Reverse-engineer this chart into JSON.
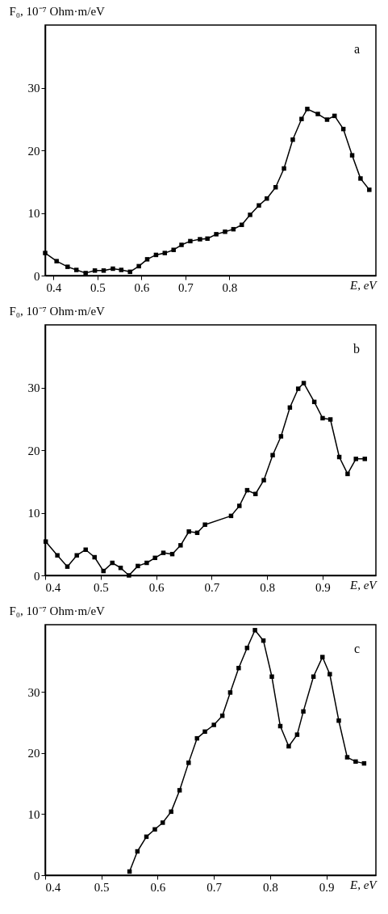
{
  "chart_data": [
    {
      "type": "line",
      "ylabel": "F₀, 10⁻⁷ Ohm·m/eV",
      "xlabel": "E, eV",
      "annotations": [
        "a"
      ],
      "marker": "square",
      "line_style": "solid",
      "grid": false,
      "xlim": [
        0.381,
        1.133
      ],
      "xticks": [
        0.4,
        0.5,
        0.6,
        0.7,
        0.8
      ],
      "ylim": [
        0,
        40
      ],
      "yticks": [
        0,
        10,
        20,
        30
      ],
      "series": [
        {
          "color": "#000000",
          "x": [
            0.381,
            0.407,
            0.432,
            0.452,
            0.473,
            0.494,
            0.514,
            0.535,
            0.554,
            0.574,
            0.594,
            0.613,
            0.633,
            0.653,
            0.673,
            0.691,
            0.711,
            0.733,
            0.75,
            0.77,
            0.79,
            0.809,
            0.828,
            0.847,
            0.867,
            0.885,
            0.905,
            0.924,
            0.944,
            0.964,
            0.977,
            1.001,
            1.022,
            1.039,
            1.059,
            1.079,
            1.098,
            1.118
          ],
          "values": [
            3.6,
            2.3,
            1.4,
            0.9,
            0.4,
            0.8,
            0.8,
            1.1,
            0.9,
            0.6,
            1.5,
            2.6,
            3.3,
            3.6,
            4.1,
            4.9,
            5.5,
            5.8,
            5.9,
            6.6,
            7.0,
            7.4,
            8.1,
            9.7,
            11.2,
            12.3,
            14.1,
            17.1,
            21.7,
            25.0,
            26.6,
            25.8,
            24.9,
            25.5,
            23.4,
            19.2,
            15.5,
            13.7
          ]
        }
      ]
    },
    {
      "type": "line",
      "ylabel": "F₀, 10⁻⁷ Ohm·m/eV",
      "xlabel": "E, eV",
      "annotations": [
        "b"
      ],
      "marker": "square",
      "line_style": "solid",
      "grid": false,
      "xlim": [
        0.4,
        0.996
      ],
      "xticks": [
        0.4,
        0.5,
        0.6,
        0.7,
        0.8,
        0.9
      ],
      "ylim": [
        0,
        40
      ],
      "yticks": [
        0,
        10,
        20,
        30
      ],
      "series": [
        {
          "color": "#000000",
          "x": [
            0.401,
            0.422,
            0.44,
            0.457,
            0.473,
            0.489,
            0.505,
            0.521,
            0.536,
            0.551,
            0.567,
            0.583,
            0.598,
            0.613,
            0.629,
            0.644,
            0.659,
            0.674,
            0.688,
            0.735,
            0.75,
            0.764,
            0.779,
            0.794,
            0.81,
            0.825,
            0.841,
            0.856,
            0.866,
            0.885,
            0.9,
            0.914,
            0.93,
            0.945,
            0.96,
            0.976
          ],
          "values": [
            5.4,
            3.2,
            1.4,
            3.2,
            4.1,
            2.9,
            0.7,
            2.0,
            1.2,
            0.0,
            1.5,
            2.0,
            2.8,
            3.6,
            3.4,
            4.8,
            7.0,
            6.8,
            8.1,
            9.5,
            11.1,
            13.6,
            13.0,
            15.2,
            19.2,
            22.2,
            26.8,
            29.8,
            30.7,
            27.7,
            25.1,
            24.9,
            18.9,
            16.2,
            18.6,
            18.6
          ]
        }
      ]
    },
    {
      "type": "line",
      "ylabel": "F₀, 10⁻⁷ Ohm·m/eV",
      "xlabel": "E, eV",
      "annotations": [
        "c"
      ],
      "marker": "square",
      "line_style": "solid",
      "grid": false,
      "xlim": [
        0.4,
        0.988
      ],
      "xticks": [
        0.4,
        0.5,
        0.6,
        0.7,
        0.8,
        0.9
      ],
      "ylim": [
        0,
        41
      ],
      "yticks": [
        0,
        10,
        20,
        30
      ],
      "series": [
        {
          "color": "#000000",
          "x": [
            0.55,
            0.564,
            0.58,
            0.595,
            0.609,
            0.624,
            0.639,
            0.655,
            0.67,
            0.684,
            0.7,
            0.715,
            0.729,
            0.744,
            0.759,
            0.773,
            0.788,
            0.803,
            0.818,
            0.833,
            0.848,
            0.859,
            0.877,
            0.893,
            0.906,
            0.922,
            0.937,
            0.952,
            0.967
          ],
          "values": [
            0.6,
            3.9,
            6.3,
            7.5,
            8.6,
            10.4,
            13.9,
            18.4,
            22.4,
            23.5,
            24.6,
            26.1,
            29.9,
            33.9,
            37.2,
            40.1,
            38.4,
            32.5,
            24.4,
            21.1,
            23.0,
            26.8,
            32.5,
            35.7,
            32.9,
            25.3,
            19.3,
            18.6,
            18.3
          ]
        }
      ]
    }
  ]
}
